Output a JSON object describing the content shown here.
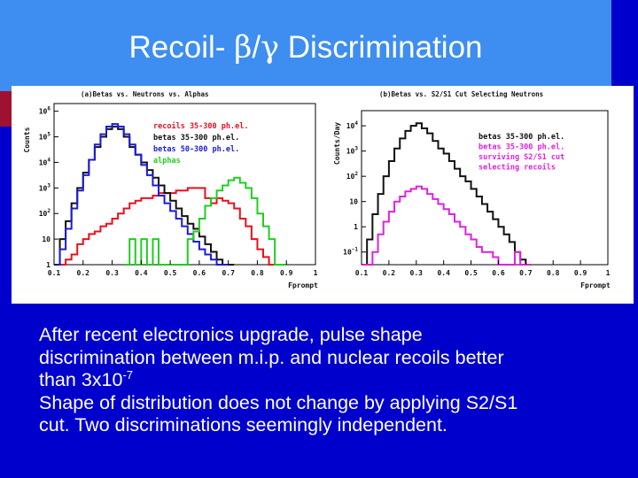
{
  "slide": {
    "title_prefix": "Recoil- ",
    "title_beta": "β",
    "title_slash": "/",
    "title_gamma": "γ",
    "title_suffix": " Discrimination",
    "caption_line1": "After recent electronics upgrade, pulse shape",
    "caption_line2": "discrimination between m.i.p. and nuclear recoils better",
    "caption_line3_main": "than 3x10",
    "caption_line3_exp": "-7",
    "caption_line4": "Shape of distribution does not change by applying S2/S1",
    "caption_line5": "cut.  Two discriminations seemingly independent.",
    "colors": {
      "background": "#0000cc",
      "title_bar": "#3d8ef0",
      "text": "#ffffff"
    }
  },
  "chart_data": [
    {
      "type": "line",
      "style": "step",
      "title": "(a)Betas vs. Neutrons vs. Alphas",
      "xlabel": "Fprompt",
      "ylabel": "Counts",
      "yscale": "log",
      "xlim": [
        0.1,
        1.0
      ],
      "ylim_log10": [
        0,
        6.3
      ],
      "x_ticks": [
        "0.1",
        "0.2",
        "0.3",
        "0.4",
        "0.5",
        "0.6",
        "0.7",
        "0.8",
        "0.9",
        "1"
      ],
      "y_ticks": [
        {
          "label": "1",
          "exp": "",
          "v": 0
        },
        {
          "label": "10",
          "exp": "",
          "v": 1
        },
        {
          "label": "10",
          "exp": "2",
          "v": 2
        },
        {
          "label": "10",
          "exp": "3",
          "v": 3
        },
        {
          "label": "10",
          "exp": "4",
          "v": 4
        },
        {
          "label": "10",
          "exp": "5",
          "v": 5
        },
        {
          "label": "10",
          "exp": "6",
          "v": 6
        }
      ],
      "legend": [
        {
          "text": "recoils 35-300",
          "unit": "ph.el.",
          "color": "#e8101e"
        },
        {
          "text": "betas 35-300",
          "unit": "ph.el.",
          "color": "#111111"
        },
        {
          "text": "betas 50-300",
          "unit": "ph.el.",
          "color": "#1c1cd8"
        },
        {
          "text": "alphas",
          "unit": "",
          "color": "#22cc22"
        }
      ],
      "series": [
        {
          "name": "recoils 35-300 ph.el.",
          "color": "#e8101e",
          "x": [
            0.1,
            0.12,
            0.14,
            0.16,
            0.18,
            0.2,
            0.22,
            0.24,
            0.26,
            0.28,
            0.3,
            0.32,
            0.34,
            0.36,
            0.38,
            0.4,
            0.42,
            0.44,
            0.46,
            0.48,
            0.5,
            0.52,
            0.54,
            0.56,
            0.58,
            0.6,
            0.62,
            0.64,
            0.66,
            0.68,
            0.7,
            0.72,
            0.74,
            0.76,
            0.78,
            0.8,
            0.82,
            0.84
          ],
          "log10_counts": [
            0,
            0,
            0.2,
            0.4,
            0.8,
            1.0,
            1.2,
            1.3,
            1.5,
            1.6,
            1.8,
            2.0,
            2.2,
            2.4,
            2.5,
            2.6,
            2.6,
            2.7,
            2.8,
            2.8,
            2.8,
            2.9,
            2.9,
            3.0,
            3.0,
            3.0,
            2.6,
            2.4,
            2.6,
            2.5,
            2.4,
            2.2,
            1.8,
            1.5,
            1.0,
            0.6,
            0.3,
            0
          ]
        },
        {
          "name": "betas 35-300 ph.el.",
          "color": "#111111",
          "x": [
            0.1,
            0.12,
            0.14,
            0.16,
            0.18,
            0.2,
            0.22,
            0.24,
            0.26,
            0.28,
            0.3,
            0.32,
            0.34,
            0.36,
            0.38,
            0.4,
            0.42,
            0.44,
            0.46,
            0.48,
            0.5,
            0.52,
            0.54,
            0.56,
            0.58,
            0.6,
            0.62,
            0.64,
            0.66,
            0.68,
            0.7
          ],
          "log10_counts": [
            0,
            1.0,
            1.7,
            2.4,
            3.0,
            3.6,
            4.1,
            4.6,
            5.0,
            5.3,
            5.4,
            5.3,
            5.0,
            4.6,
            4.3,
            4.0,
            3.7,
            3.4,
            3.1,
            2.8,
            2.5,
            2.2,
            1.9,
            1.6,
            1.4,
            1.1,
            0.8,
            0.5,
            0.2,
            0,
            0
          ]
        },
        {
          "name": "betas 50-300 ph.el.",
          "color": "#1c1cd8",
          "x": [
            0.1,
            0.12,
            0.14,
            0.16,
            0.18,
            0.2,
            0.22,
            0.24,
            0.26,
            0.28,
            0.3,
            0.32,
            0.34,
            0.36,
            0.38,
            0.4,
            0.42,
            0.44,
            0.46,
            0.48,
            0.5,
            0.52,
            0.54,
            0.56,
            0.58,
            0.6,
            0.62,
            0.64,
            0.66,
            0.68
          ],
          "log10_counts": [
            0,
            0.6,
            1.4,
            2.2,
            2.9,
            3.5,
            4.1,
            4.7,
            5.1,
            5.4,
            5.5,
            5.4,
            5.1,
            4.7,
            4.3,
            3.9,
            3.5,
            3.1,
            2.7,
            2.4,
            2.1,
            1.8,
            1.5,
            1.2,
            0.9,
            0.6,
            0.4,
            0.2,
            0,
            0
          ]
        },
        {
          "name": "alphas",
          "color": "#22cc22",
          "x": [
            0.34,
            0.36,
            0.38,
            0.4,
            0.42,
            0.44,
            0.46,
            0.48,
            0.5,
            0.52,
            0.54,
            0.56,
            0.58,
            0.6,
            0.62,
            0.64,
            0.66,
            0.68,
            0.7,
            0.72,
            0.74,
            0.76,
            0.78,
            0.8,
            0.82,
            0.84,
            0.86,
            0.88
          ],
          "log10_counts": [
            0,
            1.0,
            0,
            1.0,
            0,
            1.0,
            0,
            0,
            0,
            0,
            0,
            1.0,
            1.3,
            1.8,
            2.3,
            2.6,
            2.9,
            3.1,
            3.3,
            3.4,
            3.2,
            3.0,
            2.6,
            2.0,
            1.5,
            1.0,
            0,
            0
          ]
        }
      ]
    },
    {
      "type": "line",
      "style": "step",
      "title": "(b)Betas vs. S2/S1 Cut Selecting Neutrons",
      "xlabel": "Fprompt",
      "ylabel": "Counts/Day",
      "yscale": "log",
      "xlim": [
        0.1,
        1.0
      ],
      "ylim_log10": [
        -1.5,
        4.6
      ],
      "x_ticks": [
        "0.1",
        "0.2",
        "0.3",
        "0.4",
        "0.5",
        "0.6",
        "0.7",
        "0.8",
        "0.9",
        "1"
      ],
      "y_ticks": [
        {
          "label": "10",
          "exp": "-1",
          "v": -1
        },
        {
          "label": "1",
          "exp": "",
          "v": 0
        },
        {
          "label": "10",
          "exp": "",
          "v": 1
        },
        {
          "label": "10",
          "exp": "2",
          "v": 2
        },
        {
          "label": "10",
          "exp": "3",
          "v": 3
        },
        {
          "label": "10",
          "exp": "4",
          "v": 4
        }
      ],
      "legend": [
        {
          "text": "betas 35-300 ph.el.",
          "color": "#111111"
        },
        {
          "text": "betas 35-300 ph.el.",
          "color": "#dd22dd"
        },
        {
          "text": "surviving S2/S1 cut",
          "color": "#dd22dd"
        },
        {
          "text": "selecting recoils",
          "color": "#dd22dd"
        }
      ],
      "series": [
        {
          "name": "betas 35-300 ph.el.",
          "color": "#111111",
          "x": [
            0.1,
            0.12,
            0.14,
            0.16,
            0.18,
            0.2,
            0.22,
            0.24,
            0.26,
            0.28,
            0.3,
            0.32,
            0.34,
            0.36,
            0.38,
            0.4,
            0.42,
            0.44,
            0.46,
            0.48,
            0.5,
            0.52,
            0.54,
            0.56,
            0.58,
            0.6,
            0.62,
            0.64,
            0.66,
            0.68,
            0.7
          ],
          "log10_counts": [
            -1.5,
            -0.5,
            0.5,
            1.3,
            2.0,
            2.6,
            3.1,
            3.5,
            3.8,
            4.0,
            4.1,
            3.9,
            3.7,
            3.4,
            3.1,
            2.9,
            2.6,
            2.3,
            2.0,
            1.8,
            1.5,
            1.2,
            0.9,
            0.6,
            0.3,
            0,
            -0.3,
            -0.6,
            -1.0,
            -1.3,
            -1.5
          ]
        },
        {
          "name": "betas 35-300 ph.el. surviving S2/S1 cut selecting recoils",
          "color": "#dd22dd",
          "x": [
            0.1,
            0.12,
            0.14,
            0.16,
            0.18,
            0.2,
            0.22,
            0.24,
            0.26,
            0.28,
            0.3,
            0.32,
            0.34,
            0.36,
            0.38,
            0.4,
            0.42,
            0.44,
            0.46,
            0.48,
            0.5,
            0.52,
            0.54,
            0.56,
            0.58,
            0.6,
            0.62,
            0.64,
            0.66,
            0.68,
            0.7
          ],
          "log10_counts": [
            -1.5,
            -1.5,
            -1.0,
            -0.3,
            0.2,
            0.6,
            1.0,
            1.2,
            1.4,
            1.5,
            1.6,
            1.5,
            1.3,
            1.1,
            0.9,
            0.7,
            0.5,
            0.2,
            0,
            -0.3,
            -0.5,
            -0.8,
            -1.0,
            -1.0,
            -1.2,
            -1.5,
            -1.5,
            -1.5,
            -1.0,
            -1.5,
            -1.5
          ]
        }
      ]
    }
  ]
}
